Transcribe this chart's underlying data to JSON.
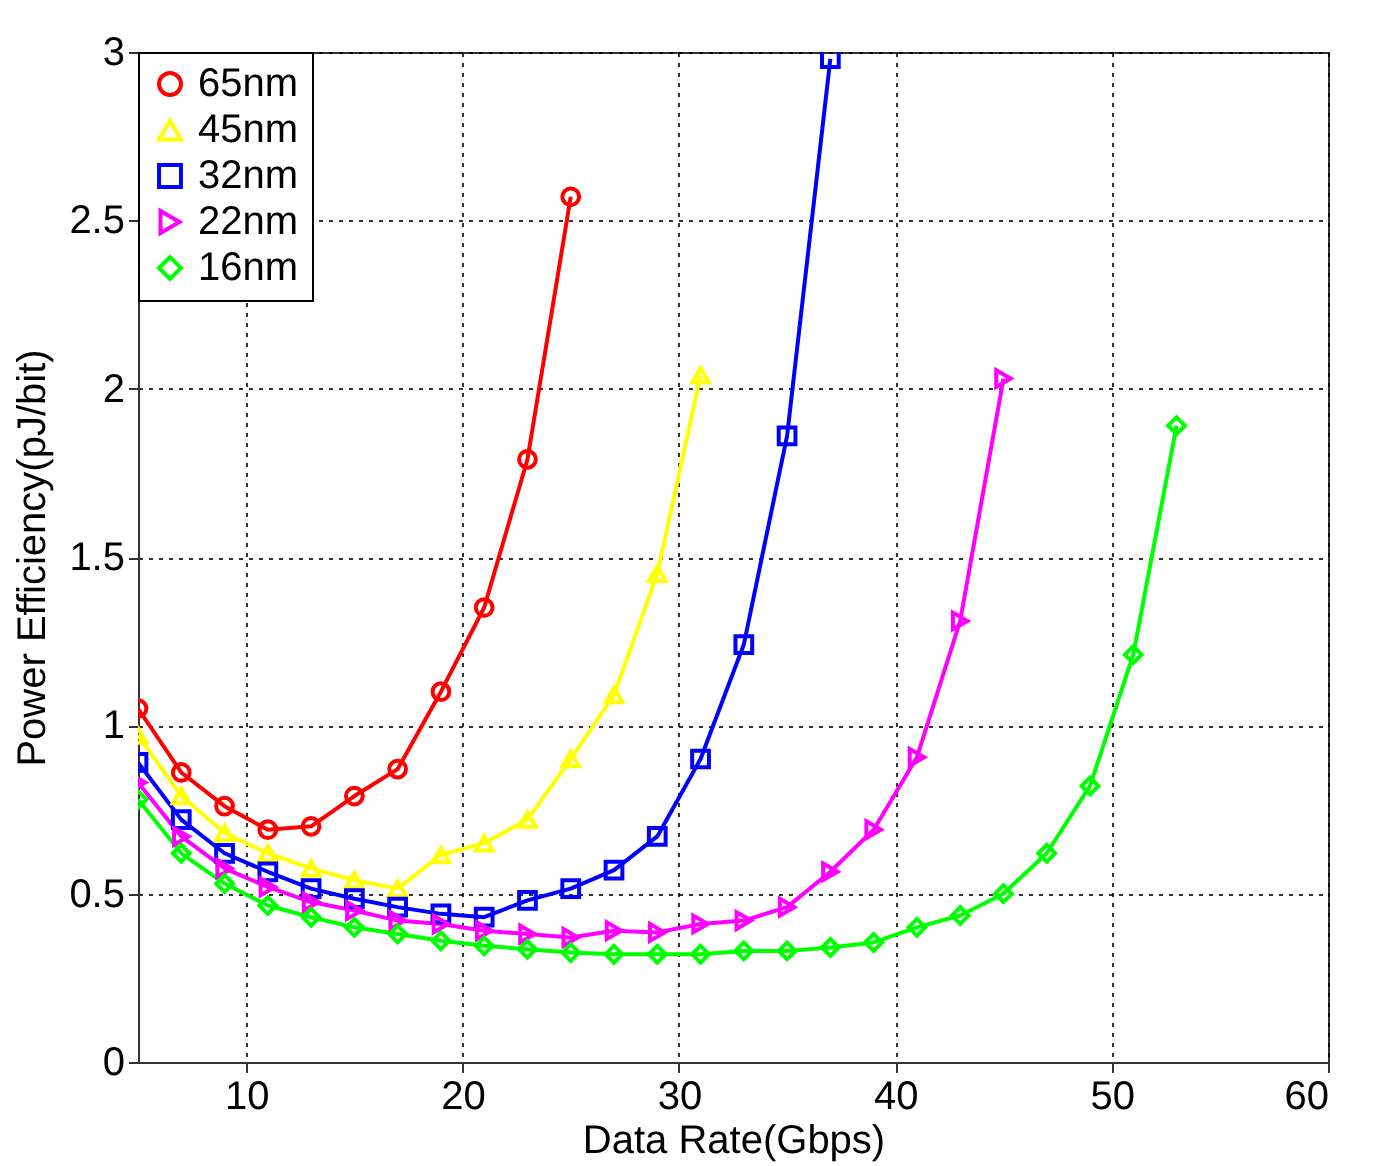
{
  "chart_data": {
    "type": "line",
    "xlabel": "Data Rate(Gbps)",
    "ylabel": "Power Efficiency(pJ/bit)",
    "xlim": [
      5,
      60
    ],
    "xticks": [
      10,
      20,
      30,
      40,
      50,
      60
    ],
    "ylim": [
      0,
      3
    ],
    "yticks": [
      0,
      0.5,
      1,
      1.5,
      2,
      2.5,
      3
    ],
    "grid": true,
    "legend": "top left",
    "line_style": "solid",
    "series": [
      {
        "name": "65nm",
        "color": "#ff0000",
        "marker": "circle",
        "x": [
          5,
          7,
          9,
          11,
          13,
          15,
          17,
          19,
          21,
          23,
          25
        ],
        "values": [
          1.05,
          0.86,
          0.76,
          0.69,
          0.7,
          0.79,
          0.87,
          1.1,
          1.35,
          1.79,
          2.57
        ]
      },
      {
        "name": "45nm",
        "color": "#ffff00",
        "marker": "triangle",
        "x": [
          5,
          7,
          9,
          11,
          13,
          15,
          17,
          19,
          21,
          23,
          25,
          27,
          29,
          31
        ],
        "values": [
          0.97,
          0.79,
          0.68,
          0.62,
          0.575,
          0.54,
          0.515,
          0.615,
          0.65,
          0.72,
          0.9,
          1.09,
          1.45,
          2.04
        ]
      },
      {
        "name": "32nm",
        "color": "#0000ff",
        "marker": "square",
        "x": [
          5,
          7,
          9,
          11,
          13,
          15,
          17,
          19,
          21,
          23,
          25,
          27,
          29,
          31,
          33,
          35,
          37
        ],
        "values": [
          0.89,
          0.72,
          0.62,
          0.565,
          0.515,
          0.485,
          0.46,
          0.44,
          0.43,
          0.48,
          0.515,
          0.57,
          0.67,
          0.9,
          1.24,
          1.86,
          2.98
        ]
      },
      {
        "name": "22nm",
        "color": "#ff00ff",
        "marker": "triangle-right",
        "x": [
          5,
          7,
          9,
          11,
          13,
          15,
          17,
          19,
          21,
          23,
          25,
          27,
          29,
          31,
          33,
          35,
          37,
          39,
          41,
          43,
          45
        ],
        "values": [
          0.83,
          0.67,
          0.575,
          0.52,
          0.475,
          0.45,
          0.42,
          0.41,
          0.39,
          0.38,
          0.37,
          0.39,
          0.385,
          0.41,
          0.42,
          0.46,
          0.565,
          0.69,
          0.905,
          1.31,
          2.03
        ]
      },
      {
        "name": "16nm",
        "color": "#00ff00",
        "marker": "diamond",
        "x": [
          5,
          7,
          9,
          11,
          13,
          15,
          17,
          19,
          21,
          23,
          25,
          27,
          29,
          31,
          33,
          35,
          37,
          39,
          41,
          43,
          45,
          47,
          49,
          51,
          53
        ],
        "values": [
          0.78,
          0.62,
          0.53,
          0.465,
          0.43,
          0.4,
          0.38,
          0.36,
          0.345,
          0.335,
          0.325,
          0.32,
          0.32,
          0.32,
          0.33,
          0.33,
          0.34,
          0.355,
          0.4,
          0.435,
          0.5,
          0.62,
          0.82,
          1.21,
          1.89
        ]
      }
    ]
  }
}
